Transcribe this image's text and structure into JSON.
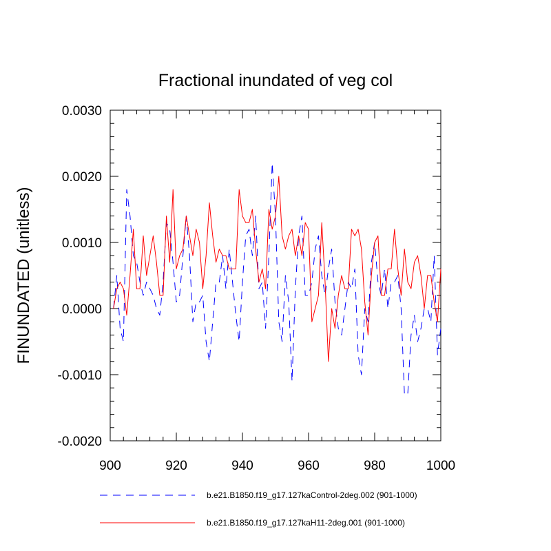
{
  "chart_data": {
    "type": "line",
    "title": "Fractional inundated of veg col",
    "xlabel": "",
    "ylabel": "FINUNDATED  (unitless)",
    "xlim": [
      900,
      1000
    ],
    "ylim": [
      -0.002,
      0.003
    ],
    "xticks": [
      900,
      920,
      940,
      960,
      980,
      1000
    ],
    "xtick_labels": [
      "900",
      "920",
      "940",
      "960",
      "980",
      "1000"
    ],
    "yticks": [
      -0.002,
      -0.001,
      0.0,
      0.001,
      0.002,
      0.003
    ],
    "ytick_labels": [
      "-0.0020",
      "-0.0010",
      "0.0000",
      "0.0010",
      "0.0020",
      "0.0030"
    ],
    "x": [
      901,
      902,
      903,
      904,
      905,
      906,
      907,
      908,
      909,
      910,
      911,
      912,
      913,
      914,
      915,
      916,
      917,
      918,
      919,
      920,
      921,
      922,
      923,
      924,
      925,
      926,
      927,
      928,
      929,
      930,
      931,
      932,
      933,
      934,
      935,
      936,
      937,
      938,
      939,
      940,
      941,
      942,
      943,
      944,
      945,
      946,
      947,
      948,
      949,
      950,
      951,
      952,
      953,
      954,
      955,
      956,
      957,
      958,
      959,
      960,
      961,
      962,
      963,
      964,
      965,
      966,
      967,
      968,
      969,
      970,
      971,
      972,
      973,
      974,
      975,
      976,
      977,
      978,
      979,
      980,
      981,
      982,
      983,
      984,
      985,
      986,
      987,
      988,
      989,
      990,
      991,
      992,
      993,
      994,
      995,
      996,
      997,
      998,
      999,
      1000
    ],
    "series": [
      {
        "name": "b.e21.B1850.f19_g17.127kaControl-2deg.002 (901-1000)",
        "color": "#0000ff",
        "style": "dashed",
        "values": [
          0.0,
          0.0005,
          -0.0003,
          -0.0005,
          0.0018,
          0.0014,
          0.0008,
          0.0007,
          0.0004,
          0.0002,
          0.0004,
          0.0003,
          0.0002,
          0.0,
          -0.0001,
          0.0004,
          0.0013,
          0.0012,
          0.0007,
          0.0001,
          0.0002,
          0.0008,
          0.0014,
          0.0008,
          -0.0002,
          0.0001,
          0.0001,
          0.0002,
          -0.0005,
          -0.0008,
          -0.0002,
          0.0004,
          0.0004,
          0.0008,
          0.0003,
          0.0009,
          0.0004,
          -0.0001,
          -0.0005,
          0.0004,
          0.0011,
          0.0012,
          0.0008,
          0.0014,
          0.0003,
          0.0004,
          -0.0003,
          0.0008,
          0.0022,
          0.0014,
          -0.0002,
          -0.0005,
          0.0005,
          0.0001,
          -0.0011,
          0.0003,
          0.0011,
          0.0014,
          0.0002,
          0.0002,
          0.0004,
          0.0009,
          0.0011,
          0.0005,
          0.0002,
          0.0006,
          0.0009,
          0.0001,
          -0.0003,
          -0.0004,
          0.0,
          0.0004,
          0.0003,
          0.0006,
          -0.0007,
          -0.001,
          0.0,
          -0.0002,
          0.0007,
          0.001,
          0.0004,
          0.0002,
          0.0006,
          0.0,
          0.0004,
          0.0004,
          0.0005,
          0.0,
          -0.0013,
          -0.0013,
          -0.0004,
          -0.0001,
          -0.0005,
          -0.0003,
          0.0,
          0.0,
          -0.0002,
          0.0008,
          -0.0007,
          -0.0003
        ]
      },
      {
        "name": "b.e21.B1850.f19_g17.127kaH11-2deg.001 (901-1000)",
        "color": "#ff0000",
        "style": "solid",
        "values": [
          0.0,
          0.0003,
          0.0004,
          0.0003,
          -0.0001,
          0.0005,
          0.0012,
          0.0003,
          0.0003,
          0.0011,
          0.0005,
          0.0008,
          0.0011,
          0.0007,
          0.0002,
          0.0002,
          0.0014,
          0.0007,
          0.0018,
          0.0006,
          0.0008,
          0.0009,
          0.0014,
          0.0011,
          0.0008,
          0.0012,
          0.001,
          0.0003,
          0.0008,
          0.0016,
          0.0011,
          0.0007,
          0.0009,
          0.0008,
          0.0008,
          0.0006,
          0.0006,
          0.0006,
          0.0018,
          0.0014,
          0.0013,
          0.0013,
          0.0015,
          0.0009,
          0.0004,
          0.0006,
          0.0003,
          0.0015,
          0.0012,
          0.0014,
          0.002,
          0.0011,
          0.0009,
          0.0011,
          0.0012,
          0.0008,
          0.0011,
          0.0008,
          0.0013,
          0.0012,
          -0.0002,
          0.0,
          0.0002,
          0.0013,
          0.0004,
          -0.0008,
          0.0,
          -0.0003,
          0.0002,
          0.0005,
          0.0003,
          0.0003,
          0.0012,
          0.0011,
          0.0012,
          0.0009,
          0.0001,
          -0.0004,
          0.0005,
          0.001,
          0.0011,
          0.0002,
          0.0002,
          0.0006,
          0.0006,
          0.0012,
          0.0006,
          0.0002,
          0.0009,
          0.0004,
          0.0003,
          0.0007,
          0.0008,
          0.0005,
          0.0,
          0.0005,
          0.0005,
          0.0001,
          -0.0002,
          0.0006
        ]
      }
    ]
  }
}
